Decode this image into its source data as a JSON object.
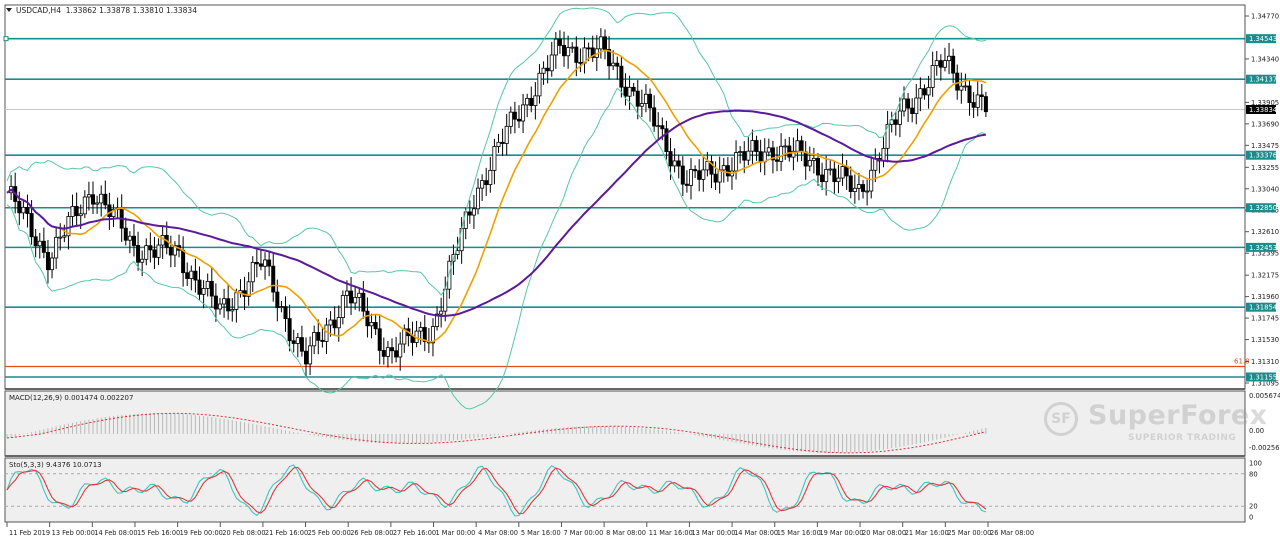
{
  "header": {
    "symbol": "USDCAD,H4",
    "ohlc": "1.33862 1.33878 1.33810 1.33834"
  },
  "macd": {
    "label": "MACD(12,26,9) 0.001474 0.002207",
    "axis": [
      "0.005674",
      "0.00",
      "-0.002561"
    ]
  },
  "stochastic": {
    "label": "Sto(5,3,3) 9.4376 10.0713",
    "axis": [
      "100",
      "80",
      "20",
      "0"
    ]
  },
  "watermark": {
    "logo": "SF",
    "brand": "SuperForex",
    "tagline": "SUPERIOR TRADING"
  },
  "colors": {
    "background": "#ffffff",
    "hline": "#1a8c8c",
    "fib_line": "#e8491d",
    "bollinger": "#56c8a0",
    "ema_fast": "#f0a000",
    "sma_slow": "#5a1a9a",
    "macd_signal": "#e03030",
    "stoch_main": "#3fc4c0",
    "stoch_signal": "#e03a3a",
    "bull_candle": "#ffffff",
    "bear_candle": "#000000"
  },
  "chart_data": {
    "type": "candlestick",
    "title": "USDCAD,H4",
    "price_axis_ticks": [
      "1.34770",
      "1.34340",
      "1.33905",
      "1.33690",
      "1.33475",
      "1.33255",
      "1.33040",
      "1.32825",
      "1.32610",
      "1.32395",
      "1.32175",
      "1.31960",
      "1.31745",
      "1.31530",
      "1.31310",
      "1.31095"
    ],
    "ylim": [
      1.3107,
      1.3483
    ],
    "current_price": "1.33834",
    "horizontal_levels": [
      {
        "price": "1.34543",
        "type": "resistance"
      },
      {
        "price": "1.34137",
        "type": "resistance"
      },
      {
        "price": "1.33376",
        "type": "support"
      },
      {
        "price": "1.32850",
        "type": "support"
      },
      {
        "price": "1.32453",
        "type": "support"
      },
      {
        "price": "1.31854",
        "type": "support"
      },
      {
        "price": "1.31155",
        "type": "support"
      }
    ],
    "fibonacci": {
      "label": "61.8",
      "price": 1.3126
    },
    "x_ticks": [
      "11 Feb 2019",
      "13 Feb 00:00",
      "14 Feb 08:00",
      "15 Feb 16:00",
      "19 Feb 00:00",
      "20 Feb 08:00",
      "21 Feb 16:00",
      "25 Feb 00:00",
      "26 Feb 08:00",
      "27 Feb 16:00",
      "1 Mar 00:00",
      "4 Mar 08:00",
      "5 Mar 16:00",
      "7 Mar 00:00",
      "8 Mar 08:00",
      "11 Mar 16:00",
      "13 Mar 00:00",
      "14 Mar 08:00",
      "15 Mar 16:00",
      "19 Mar 00:00",
      "20 Mar 08:00",
      "21 Mar 16:00",
      "25 Mar 00:00",
      "26 Mar 08:00"
    ],
    "price_path_approx": [
      {
        "x": "11 Feb 2019",
        "close": 1.33
      },
      {
        "x": "13 Feb 00:00",
        "close": 1.3235
      },
      {
        "x": "14 Feb 08:00",
        "close": 1.3305
      },
      {
        "x": "15 Feb 16:00",
        "close": 1.3245
      },
      {
        "x": "19 Feb 00:00",
        "close": 1.324
      },
      {
        "x": "20 Feb 08:00",
        "close": 1.318
      },
      {
        "x": "21 Feb 16:00",
        "close": 1.323
      },
      {
        "x": "25 Feb 00:00",
        "close": 1.313
      },
      {
        "x": "26 Feb 08:00",
        "close": 1.32
      },
      {
        "x": "27 Feb 16:00",
        "close": 1.314
      },
      {
        "x": "1 Mar 00:00",
        "close": 1.3165
      },
      {
        "x": "4 Mar 08:00",
        "close": 1.33
      },
      {
        "x": "5 Mar 16:00",
        "close": 1.338
      },
      {
        "x": "7 Mar 00:00",
        "close": 1.3445
      },
      {
        "x": "8 Mar 08:00",
        "close": 1.344
      },
      {
        "x": "11 Mar 16:00",
        "close": 1.3385
      },
      {
        "x": "13 Mar 00:00",
        "close": 1.331
      },
      {
        "x": "14 Mar 08:00",
        "close": 1.333
      },
      {
        "x": "15 Mar 16:00",
        "close": 1.3345
      },
      {
        "x": "19 Mar 00:00",
        "close": 1.333
      },
      {
        "x": "20 Mar 08:00",
        "close": 1.33
      },
      {
        "x": "21 Mar 16:00",
        "close": 1.338
      },
      {
        "x": "25 Mar 00:00",
        "close": 1.343
      },
      {
        "x": "26 Mar 08:00",
        "close": 1.3383
      }
    ],
    "indicators": [
      "Bollinger Bands",
      "EMA (fast, orange)",
      "SMA (slow, purple)",
      "MACD(12,26,9)",
      "Stochastic(5,3,3)"
    ],
    "macd_values": {
      "main": 0.001474,
      "signal": 0.002207,
      "range": [
        -0.002561,
        0.005674
      ]
    },
    "stochastic_values": {
      "main": 9.4376,
      "signal": 10.0713,
      "levels": [
        20,
        80
      ],
      "range": [
        0,
        100
      ]
    },
    "grid": false,
    "legend": "none"
  }
}
